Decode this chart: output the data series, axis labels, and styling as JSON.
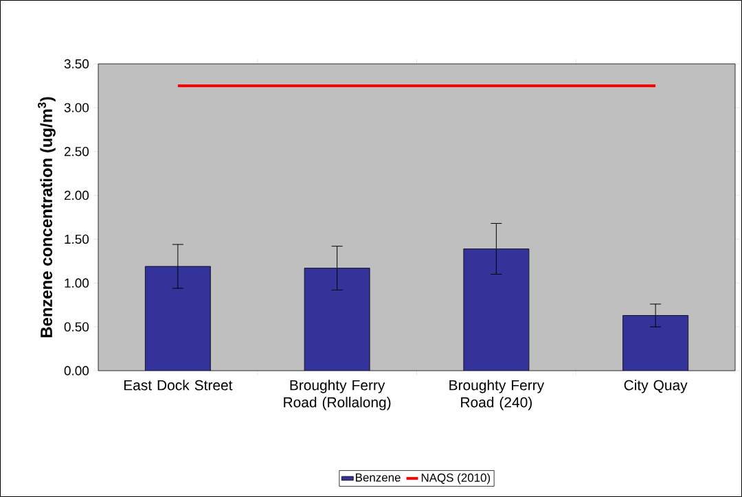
{
  "chart_data": {
    "type": "bar",
    "ylabel": "Benzene concentration (ug/m$^{3}$)",
    "categories": [
      "East Dock Street",
      "Broughty Ferry Road (Rollalong)",
      "Broughty Ferry Road (240)",
      "City Quay"
    ],
    "series": [
      {
        "name": "Benzene",
        "color": "#333399",
        "values": [
          1.19,
          1.17,
          1.39,
          0.63
        ],
        "errors": [
          0.25,
          0.25,
          0.29,
          0.13
        ]
      },
      {
        "name": "NAQS (2010)",
        "type": "line",
        "color": "#ff0000",
        "values": [
          3.25,
          3.25,
          3.25,
          3.25
        ]
      }
    ],
    "ylim": [
      0,
      3.5
    ],
    "yticks": [
      {
        "value": 0,
        "label": "0.00"
      },
      {
        "value": 0.5,
        "label": "0.50"
      },
      {
        "value": 1,
        "label": "1.00"
      },
      {
        "value": 1.5,
        "label": "1.50"
      },
      {
        "value": 2,
        "label": "2.00"
      },
      {
        "value": 2.5,
        "label": "2.50"
      },
      {
        "value": 3,
        "label": "3.00"
      },
      {
        "value": 3.5,
        "label": "3.50"
      }
    ],
    "legend": "bottom"
  }
}
